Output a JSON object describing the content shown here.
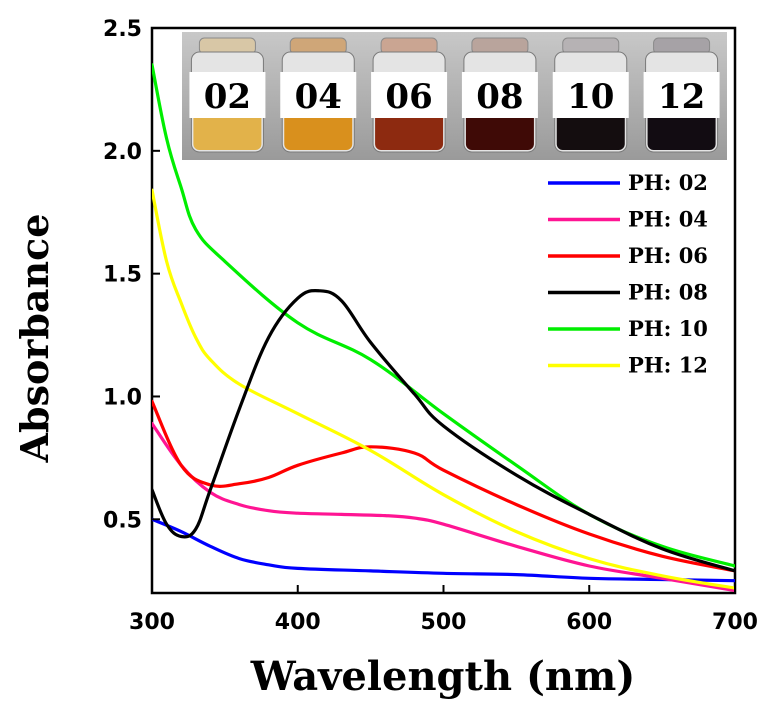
{
  "chart_data": {
    "type": "line",
    "title": "",
    "xlabel": "Wavelength (nm)",
    "ylabel": "Absorbance",
    "xlim": [
      300,
      700
    ],
    "ylim": [
      0.2,
      2.5
    ],
    "x_ticks": [
      "300",
      "400",
      "500",
      "600",
      "700"
    ],
    "x_tick_values": [
      300,
      400,
      500,
      600,
      700
    ],
    "y_ticks": [
      "0.5",
      "1.0",
      "1.5",
      "2.0",
      "2.5"
    ],
    "y_tick_values": [
      0.5,
      1.0,
      1.5,
      2.0,
      2.5
    ],
    "legend_position": "right",
    "series": [
      {
        "name": "PH: 02",
        "color": "#0000ff",
        "x": [
          300,
          320,
          340,
          360,
          380,
          400,
          450,
          500,
          550,
          600,
          650,
          700
        ],
        "y": [
          0.5,
          0.45,
          0.39,
          0.34,
          0.315,
          0.3,
          0.29,
          0.28,
          0.275,
          0.26,
          0.255,
          0.25
        ]
      },
      {
        "name": "PH: 04",
        "color": "#ff1493",
        "x": [
          300,
          320,
          340,
          360,
          380,
          400,
          430,
          460,
          480,
          500,
          550,
          600,
          650,
          700
        ],
        "y": [
          0.89,
          0.72,
          0.61,
          0.56,
          0.535,
          0.525,
          0.52,
          0.515,
          0.505,
          0.48,
          0.39,
          0.31,
          0.26,
          0.21
        ]
      },
      {
        "name": "PH: 06",
        "color": "#ff0000",
        "x": [
          300,
          320,
          340,
          360,
          380,
          400,
          430,
          450,
          480,
          500,
          550,
          600,
          650,
          700
        ],
        "y": [
          0.98,
          0.72,
          0.64,
          0.645,
          0.67,
          0.72,
          0.77,
          0.795,
          0.77,
          0.7,
          0.56,
          0.44,
          0.35,
          0.29
        ]
      },
      {
        "name": "PH: 08",
        "color": "#000000",
        "x": [
          300,
          310,
          320,
          330,
          340,
          360,
          380,
          400,
          415,
          430,
          450,
          480,
          500,
          550,
          600,
          650,
          700
        ],
        "y": [
          0.62,
          0.48,
          0.43,
          0.46,
          0.62,
          0.95,
          1.24,
          1.4,
          1.43,
          1.39,
          1.22,
          1.01,
          0.88,
          0.68,
          0.52,
          0.38,
          0.29
        ]
      },
      {
        "name": "PH: 10",
        "color": "#00ee00",
        "x": [
          300,
          310,
          320,
          330,
          350,
          400,
          450,
          500,
          550,
          600,
          650,
          700
        ],
        "y": [
          2.35,
          2.05,
          1.85,
          1.68,
          1.55,
          1.3,
          1.15,
          0.93,
          0.72,
          0.52,
          0.39,
          0.31
        ]
      },
      {
        "name": "PH: 12",
        "color": "#ffff00",
        "x": [
          300,
          310,
          320,
          330,
          340,
          360,
          400,
          450,
          500,
          550,
          600,
          650,
          700
        ],
        "y": [
          1.84,
          1.55,
          1.38,
          1.24,
          1.15,
          1.05,
          0.93,
          0.78,
          0.6,
          0.45,
          0.34,
          0.27,
          0.22
        ]
      }
    ]
  },
  "inset_photo": {
    "vials": [
      {
        "label": "02",
        "liquid": "#e2b24a",
        "cap": "#d8c7a6"
      },
      {
        "label": "04",
        "liquid": "#d9901d",
        "cap": "#cfa678"
      },
      {
        "label": "06",
        "liquid": "#8d2a10",
        "cap": "#caa592"
      },
      {
        "label": "08",
        "liquid": "#3f0a06",
        "cap": "#b9a49c"
      },
      {
        "label": "10",
        "liquid": "#140d0f",
        "cap": "#b6b2b4"
      },
      {
        "label": "12",
        "liquid": "#120c12",
        "cap": "#a6a2a6"
      }
    ]
  }
}
